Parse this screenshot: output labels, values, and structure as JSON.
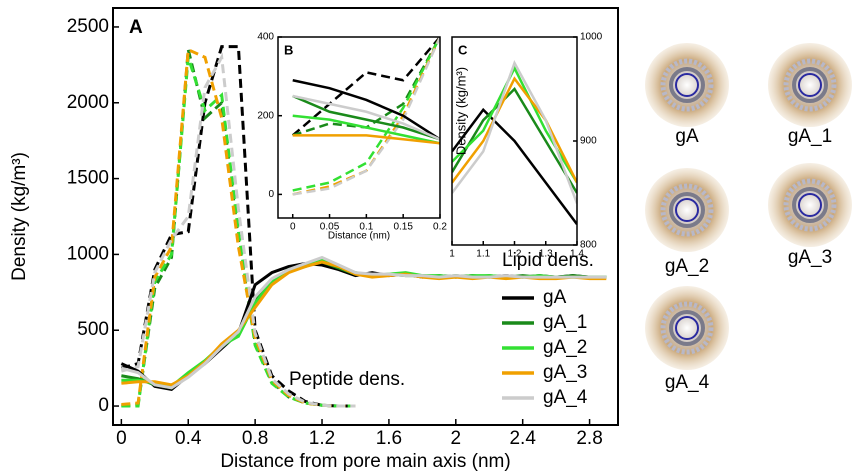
{
  "chart_data": [
    {
      "type": "line",
      "panel": "A",
      "xlabel": "Distance from pore main axis (nm)",
      "ylabel": "Density (kg/m³)",
      "annotations": [
        "Lipid dens.",
        "Peptide dens."
      ],
      "xlim": [
        -0.05,
        2.97
      ],
      "xticks": [
        0,
        0.4,
        0.8,
        1.2,
        1.6,
        2,
        2.4,
        2.8
      ],
      "ylim": [
        -125,
        2625
      ],
      "yticks": [
        0,
        500,
        1000,
        1500,
        2000,
        2500
      ],
      "legend": "lower right",
      "x": [
        0,
        0.1,
        0.2,
        0.3,
        0.4,
        0.5,
        0.6,
        0.7,
        0.8,
        0.9,
        1,
        1.1,
        1.2,
        1.3,
        1.4,
        1.5,
        1.6,
        1.7,
        1.8,
        1.9,
        2,
        2.1,
        2.2,
        2.3,
        2.4,
        2.5,
        2.6,
        2.7,
        2.8,
        2.9
      ],
      "series": [
        {
          "name": "gA",
          "color": "#000000",
          "values": [
            280,
            230,
            130,
            110,
            200,
            280,
            380,
            480,
            800,
            880,
            920,
            940,
            930,
            900,
            860,
            880,
            860,
            870,
            850,
            860,
            850,
            860,
            850,
            860,
            850,
            860,
            850,
            860,
            850,
            850
          ],
          "dashed_values": [
            250,
            280,
            900,
            1130,
            1150,
            2000,
            2370,
            2370,
            500,
            200,
            100,
            30,
            5,
            0,
            0,
            null,
            null,
            null,
            null,
            null,
            null,
            null,
            null,
            null,
            null,
            null,
            null,
            null,
            null,
            null
          ]
        },
        {
          "name": "gA_1",
          "color": "#1a8a1a",
          "values": [
            200,
            180,
            140,
            120,
            210,
            290,
            390,
            470,
            700,
            830,
            900,
            930,
            950,
            910,
            870,
            860,
            870,
            860,
            860,
            850,
            860,
            850,
            860,
            850,
            860,
            850,
            850,
            860,
            850,
            850
          ],
          "dashed_values": [
            0,
            10,
            780,
            980,
            2350,
            1900,
            2000,
            1100,
            420,
            160,
            60,
            20,
            5,
            0,
            0,
            null,
            null,
            null,
            null,
            null,
            null,
            null,
            null,
            null,
            null,
            null,
            null,
            null,
            null,
            null
          ]
        },
        {
          "name": "gA_2",
          "color": "#33e033",
          "values": [
            170,
            170,
            150,
            130,
            220,
            300,
            400,
            460,
            680,
            820,
            890,
            920,
            960,
            920,
            880,
            860,
            870,
            880,
            860,
            860,
            850,
            860,
            860,
            850,
            850,
            860,
            850,
            850,
            850,
            850
          ],
          "dashed_values": [
            0,
            0,
            820,
            1000,
            2300,
            1950,
            2050,
            1150,
            400,
            150,
            60,
            20,
            5,
            0,
            0,
            null,
            null,
            null,
            null,
            null,
            null,
            null,
            null,
            null,
            null,
            null,
            null,
            null,
            null,
            null
          ]
        },
        {
          "name": "gA_3",
          "color": "#f0a000",
          "values": [
            150,
            160,
            160,
            140,
            200,
            290,
            410,
            500,
            650,
            800,
            880,
            920,
            950,
            920,
            870,
            850,
            860,
            870,
            850,
            840,
            850,
            840,
            850,
            840,
            850,
            840,
            840,
            850,
            840,
            840
          ],
          "dashed_values": [
            10,
            20,
            850,
            1050,
            2350,
            2300,
            1900,
            1050,
            450,
            170,
            70,
            20,
            5,
            0,
            0,
            null,
            null,
            null,
            null,
            null,
            null,
            null,
            null,
            null,
            null,
            null,
            null,
            null,
            null,
            null
          ]
        },
        {
          "name": "gA_4",
          "color": "#cccccc",
          "values": [
            250,
            220,
            140,
            120,
            190,
            280,
            390,
            490,
            720,
            840,
            900,
            940,
            980,
            930,
            880,
            870,
            870,
            860,
            860,
            850,
            860,
            850,
            850,
            860,
            850,
            850,
            850,
            850,
            850,
            850
          ],
          "dashed_values": [
            230,
            260,
            880,
            1100,
            1250,
            2100,
            2300,
            1300,
            480,
            180,
            80,
            25,
            5,
            0,
            0,
            null,
            null,
            null,
            null,
            null,
            null,
            null,
            null,
            null,
            null,
            null,
            null,
            null,
            null,
            null
          ]
        }
      ]
    },
    {
      "type": "line",
      "panel": "B",
      "xlabel": "Distance (nm)",
      "xlim": [
        -0.02,
        0.2
      ],
      "xticks": [
        0,
        0.05,
        0.1,
        0.15,
        0.2
      ],
      "ylim": [
        -60,
        400
      ],
      "yticks": [
        0,
        200,
        400
      ],
      "x": [
        0,
        0.05,
        0.1,
        0.15,
        0.2
      ],
      "series": [
        {
          "name": "gA",
          "color": "#000000",
          "values": [
            290,
            270,
            240,
            200,
            140
          ],
          "dashed_values": [
            150,
            230,
            310,
            290,
            400
          ]
        },
        {
          "name": "gA_1",
          "color": "#1a8a1a",
          "values": [
            250,
            210,
            190,
            170,
            140
          ],
          "dashed_values": [
            150,
            180,
            170,
            230,
            400
          ]
        },
        {
          "name": "gA_2",
          "color": "#33e033",
          "values": [
            200,
            190,
            170,
            150,
            130
          ],
          "dashed_values": [
            10,
            30,
            80,
            220,
            400
          ]
        },
        {
          "name": "gA_3",
          "color": "#f0a000",
          "values": [
            150,
            150,
            150,
            140,
            130
          ],
          "dashed_values": [
            0,
            20,
            60,
            200,
            400
          ]
        },
        {
          "name": "gA_4",
          "color": "#cccccc",
          "values": [
            250,
            230,
            210,
            180,
            140
          ],
          "dashed_values": [
            0,
            15,
            60,
            190,
            400
          ]
        }
      ]
    },
    {
      "type": "line",
      "panel": "C",
      "ylabel": "Density (kg/m³)",
      "yaxis": "right",
      "xlim": [
        1,
        1.4
      ],
      "xticks": [
        1,
        1.1,
        1.2,
        1.3,
        1.4
      ],
      "ylim": [
        800,
        1000
      ],
      "yticks": [
        800,
        900,
        1000
      ],
      "x": [
        1,
        1.1,
        1.2,
        1.3,
        1.4
      ],
      "series": [
        {
          "name": "gA",
          "color": "#000000",
          "values": [
            890,
            930,
            900,
            860,
            820
          ]
        },
        {
          "name": "gA_1",
          "color": "#1a8a1a",
          "values": [
            870,
            920,
            950,
            900,
            850
          ]
        },
        {
          "name": "gA_2",
          "color": "#33e033",
          "values": [
            880,
            910,
            970,
            910,
            860
          ]
        },
        {
          "name": "gA_3",
          "color": "#f0a000",
          "values": [
            860,
            900,
            960,
            920,
            860
          ]
        },
        {
          "name": "gA_4",
          "color": "#cccccc",
          "values": [
            850,
            890,
            975,
            920,
            840
          ]
        }
      ]
    }
  ],
  "structures": {
    "labels": [
      "gA",
      "gA_1",
      "gA_2",
      "gA_3",
      "gA_4"
    ]
  }
}
